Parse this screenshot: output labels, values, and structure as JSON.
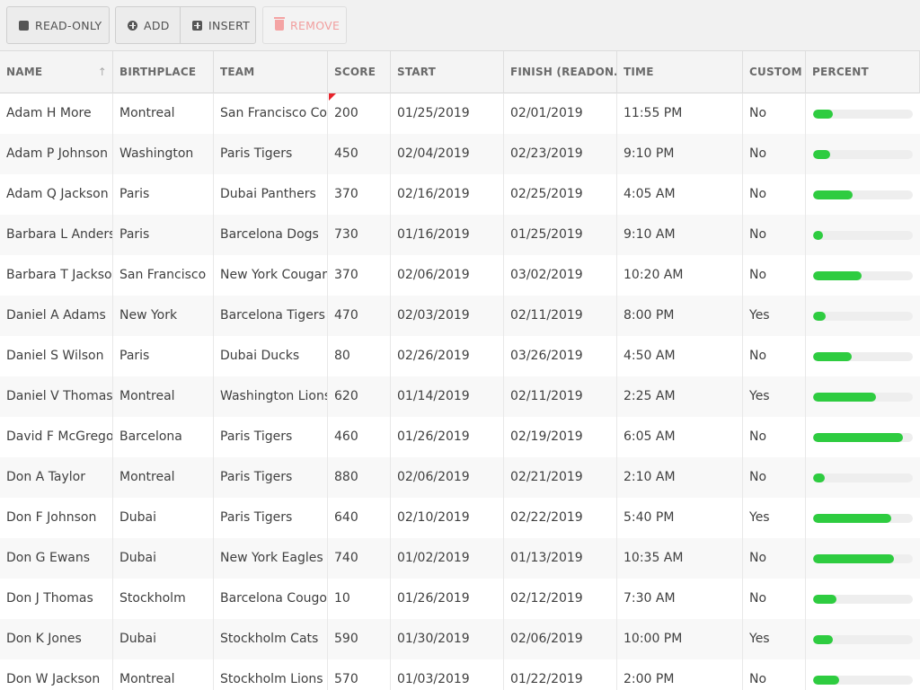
{
  "toolbar": {
    "readonly_label": "READ-ONLY",
    "add_label": "ADD",
    "insert_label": "INSERT",
    "remove_label": "REMOVE"
  },
  "columns": [
    {
      "key": "name",
      "label": "NAME",
      "sortable": true
    },
    {
      "key": "birthplace",
      "label": "BIRTHPLACE"
    },
    {
      "key": "team",
      "label": "TEAM"
    },
    {
      "key": "score",
      "label": "SCORE"
    },
    {
      "key": "start",
      "label": "START"
    },
    {
      "key": "finish",
      "label": "FINISH (READON…"
    },
    {
      "key": "time",
      "label": "TIME"
    },
    {
      "key": "custom",
      "label": "CUSTOM"
    },
    {
      "key": "percent",
      "label": "PERCENT"
    }
  ],
  "sort_indicator": "↑",
  "colors": {
    "progress": "#2ecc40",
    "flag": "#e8232b",
    "remove_disabled": "#f29e9e"
  },
  "rows": [
    {
      "name": "Adam H More",
      "birthplace": "Montreal",
      "team": "San Francisco Co",
      "score": "200",
      "start": "01/25/2019",
      "finish": "02/01/2019",
      "time": "11:55 PM",
      "custom": "No",
      "percent": 0.2
    },
    {
      "name": "Adam P Johnson",
      "birthplace": "Washington",
      "team": "Paris Tigers",
      "score": "450",
      "start": "02/04/2019",
      "finish": "02/23/2019",
      "time": "9:10 PM",
      "custom": "No",
      "percent": 0.17
    },
    {
      "name": "Adam Q Jackson",
      "birthplace": "Paris",
      "team": "Dubai Panthers",
      "score": "370",
      "start": "02/16/2019",
      "finish": "02/25/2019",
      "time": "4:05 AM",
      "custom": "No",
      "percent": 0.4
    },
    {
      "name": "Barbara L Anders",
      "birthplace": "Paris",
      "team": "Barcelona Dogs",
      "score": "730",
      "start": "01/16/2019",
      "finish": "01/25/2019",
      "time": "9:10 AM",
      "custom": "No",
      "percent": 0.1
    },
    {
      "name": "Barbara T Jackso",
      "birthplace": "San Francisco",
      "team": "New York Cougar",
      "score": "370",
      "start": "02/06/2019",
      "finish": "03/02/2019",
      "time": "10:20 AM",
      "custom": "No",
      "percent": 0.49
    },
    {
      "name": "Daniel A Adams",
      "birthplace": "New York",
      "team": "Barcelona Tigers",
      "score": "470",
      "start": "02/03/2019",
      "finish": "02/11/2019",
      "time": "8:00 PM",
      "custom": "Yes",
      "percent": 0.13
    },
    {
      "name": "Daniel S Wilson",
      "birthplace": "Paris",
      "team": "Dubai Ducks",
      "score": "80",
      "start": "02/26/2019",
      "finish": "03/26/2019",
      "time": "4:50 AM",
      "custom": "No",
      "percent": 0.39
    },
    {
      "name": "Daniel V Thomas",
      "birthplace": "Montreal",
      "team": "Washington Lions",
      "score": "620",
      "start": "01/14/2019",
      "finish": "02/11/2019",
      "time": "2:25 AM",
      "custom": "Yes",
      "percent": 0.63
    },
    {
      "name": "David F McGrego",
      "birthplace": "Barcelona",
      "team": "Paris Tigers",
      "score": "460",
      "start": "01/26/2019",
      "finish": "02/19/2019",
      "time": "6:05 AM",
      "custom": "No",
      "percent": 0.9
    },
    {
      "name": "Don A Taylor",
      "birthplace": "Montreal",
      "team": "Paris Tigers",
      "score": "880",
      "start": "02/06/2019",
      "finish": "02/21/2019",
      "time": "2:10 AM",
      "custom": "No",
      "percent": 0.12
    },
    {
      "name": "Don F Johnson",
      "birthplace": "Dubai",
      "team": "Paris Tigers",
      "score": "640",
      "start": "02/10/2019",
      "finish": "02/22/2019",
      "time": "5:40 PM",
      "custom": "Yes",
      "percent": 0.78
    },
    {
      "name": "Don G Ewans",
      "birthplace": "Dubai",
      "team": "New York Eagles",
      "score": "740",
      "start": "01/02/2019",
      "finish": "01/13/2019",
      "time": "10:35 AM",
      "custom": "No",
      "percent": 0.81
    },
    {
      "name": "Don J Thomas",
      "birthplace": "Stockholm",
      "team": "Barcelona Cougo",
      "score": "10",
      "start": "01/26/2019",
      "finish": "02/12/2019",
      "time": "7:30 AM",
      "custom": "No",
      "percent": 0.23
    },
    {
      "name": "Don K Jones",
      "birthplace": "Dubai",
      "team": "Stockholm Cats",
      "score": "590",
      "start": "01/30/2019",
      "finish": "02/06/2019",
      "time": "10:00 PM",
      "custom": "Yes",
      "percent": 0.2
    },
    {
      "name": "Don W Jackson",
      "birthplace": "Montreal",
      "team": "Stockholm Lions",
      "score": "570",
      "start": "01/03/2019",
      "finish": "01/22/2019",
      "time": "2:00 PM",
      "custom": "No",
      "percent": 0.26
    }
  ]
}
